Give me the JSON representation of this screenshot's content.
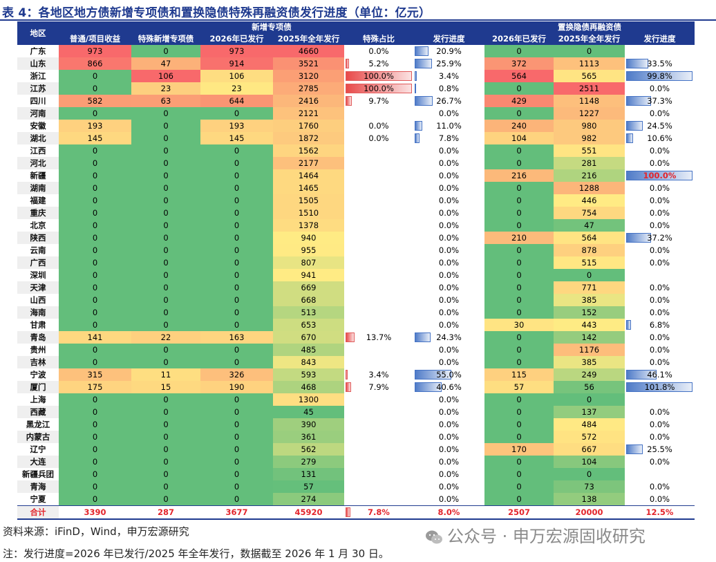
{
  "title": "表 4：各地区地方债新增专项债和置换隐债特殊再融资债发行进度（单位：亿元）",
  "header": {
    "region": "地区",
    "group_new": "新增专项债",
    "group_refi": "置换隐债再融资债",
    "cols": [
      "普通/项目收益",
      "特殊新增专项债",
      "2026年已发行",
      "2025年全年发行",
      "特殊占比",
      "发行进度",
      "2026年已发行",
      "2025年全年发行",
      "发行进度"
    ]
  },
  "rows": [
    {
      "region": "广东",
      "c1": "973",
      "c2": "0",
      "c3": "973",
      "c4": "4660",
      "share": "0.0%",
      "share_v": 0,
      "prog": "20.9%",
      "prog_v": 20.9,
      "r1": "0",
      "r2": "0",
      "rprog": "",
      "rprog_v": null
    },
    {
      "region": "山东",
      "c1": "866",
      "c2": "47",
      "c3": "914",
      "c4": "3521",
      "share": "5.2%",
      "share_v": 5.2,
      "prog": "25.9%",
      "prog_v": 25.9,
      "r1": "372",
      "r2": "1113",
      "rprog": "33.5%",
      "rprog_v": 33.5
    },
    {
      "region": "浙江",
      "c1": "0",
      "c2": "106",
      "c3": "106",
      "c4": "3120",
      "share": "100.0%",
      "share_v": 100,
      "prog": "3.4%",
      "prog_v": 3.4,
      "r1": "564",
      "r2": "565",
      "rprog": "99.8%",
      "rprog_v": 99.8
    },
    {
      "region": "江苏",
      "c1": "0",
      "c2": "23",
      "c3": "23",
      "c4": "2785",
      "share": "100.0%",
      "share_v": 100,
      "prog": "0.8%",
      "prog_v": 0.8,
      "r1": "0",
      "r2": "2511",
      "rprog": "0.0%",
      "rprog_v": 0
    },
    {
      "region": "四川",
      "c1": "582",
      "c2": "63",
      "c3": "644",
      "c4": "2416",
      "share": "9.7%",
      "share_v": 9.7,
      "prog": "26.7%",
      "prog_v": 26.7,
      "r1": "429",
      "r2": "1148",
      "rprog": "37.3%",
      "rprog_v": 37.3
    },
    {
      "region": "河南",
      "c1": "0",
      "c2": "0",
      "c3": "0",
      "c4": "2121",
      "share": "",
      "share_v": null,
      "prog": "0.0%",
      "prog_v": 0,
      "r1": "0",
      "r2": "1227",
      "rprog": "0.0%",
      "rprog_v": 0
    },
    {
      "region": "安徽",
      "c1": "193",
      "c2": "0",
      "c3": "193",
      "c4": "1760",
      "share": "0.0%",
      "share_v": 0,
      "prog": "11.0%",
      "prog_v": 11.0,
      "r1": "240",
      "r2": "980",
      "rprog": "24.5%",
      "rprog_v": 24.5
    },
    {
      "region": "湖北",
      "c1": "145",
      "c2": "0",
      "c3": "145",
      "c4": "1872",
      "share": "0.0%",
      "share_v": 0,
      "prog": "7.8%",
      "prog_v": 7.8,
      "r1": "104",
      "r2": "982",
      "rprog": "10.6%",
      "rprog_v": 10.6
    },
    {
      "region": "江西",
      "c1": "0",
      "c2": "0",
      "c3": "0",
      "c4": "1562",
      "share": "",
      "share_v": null,
      "prog": "0.0%",
      "prog_v": 0,
      "r1": "0",
      "r2": "551",
      "rprog": "0.0%",
      "rprog_v": 0
    },
    {
      "region": "河北",
      "c1": "0",
      "c2": "0",
      "c3": "0",
      "c4": "2177",
      "share": "",
      "share_v": null,
      "prog": "0.0%",
      "prog_v": 0,
      "r1": "0",
      "r2": "281",
      "rprog": "0.0%",
      "rprog_v": 0
    },
    {
      "region": "新疆",
      "c1": "0",
      "c2": "0",
      "c3": "0",
      "c4": "1464",
      "share": "",
      "share_v": null,
      "prog": "0.0%",
      "prog_v": 0,
      "r1": "216",
      "r2": "216",
      "rprog": "100.0%",
      "rprog_v": 100,
      "rprog_hl": true
    },
    {
      "region": "湖南",
      "c1": "0",
      "c2": "0",
      "c3": "0",
      "c4": "1465",
      "share": "",
      "share_v": null,
      "prog": "0.0%",
      "prog_v": 0,
      "r1": "0",
      "r2": "1288",
      "rprog": "0.0%",
      "rprog_v": 0
    },
    {
      "region": "福建",
      "c1": "0",
      "c2": "0",
      "c3": "0",
      "c4": "1505",
      "share": "",
      "share_v": null,
      "prog": "0.0%",
      "prog_v": 0,
      "r1": "0",
      "r2": "446",
      "rprog": "0.0%",
      "rprog_v": 0
    },
    {
      "region": "重庆",
      "c1": "0",
      "c2": "0",
      "c3": "0",
      "c4": "1510",
      "share": "",
      "share_v": null,
      "prog": "0.0%",
      "prog_v": 0,
      "r1": "0",
      "r2": "754",
      "rprog": "0.0%",
      "rprog_v": 0
    },
    {
      "region": "北京",
      "c1": "0",
      "c2": "0",
      "c3": "0",
      "c4": "1378",
      "share": "",
      "share_v": null,
      "prog": "0.0%",
      "prog_v": 0,
      "r1": "0",
      "r2": "47",
      "rprog": "0.0%",
      "rprog_v": 0
    },
    {
      "region": "陕西",
      "c1": "0",
      "c2": "0",
      "c3": "0",
      "c4": "940",
      "share": "",
      "share_v": null,
      "prog": "0.0%",
      "prog_v": 0,
      "r1": "210",
      "r2": "564",
      "rprog": "37.2%",
      "rprog_v": 37.2
    },
    {
      "region": "云南",
      "c1": "0",
      "c2": "0",
      "c3": "0",
      "c4": "955",
      "share": "",
      "share_v": null,
      "prog": "0.0%",
      "prog_v": 0,
      "r1": "0",
      "r2": "878",
      "rprog": "0.0%",
      "rprog_v": 0
    },
    {
      "region": "广西",
      "c1": "0",
      "c2": "0",
      "c3": "0",
      "c4": "807",
      "share": "",
      "share_v": null,
      "prog": "0.0%",
      "prog_v": 0,
      "r1": "0",
      "r2": "515",
      "rprog": "0.0%",
      "rprog_v": 0
    },
    {
      "region": "深圳",
      "c1": "0",
      "c2": "0",
      "c3": "0",
      "c4": "941",
      "share": "",
      "share_v": null,
      "prog": "0.0%",
      "prog_v": 0,
      "r1": "0",
      "r2": "0",
      "rprog": "",
      "rprog_v": null
    },
    {
      "region": "天津",
      "c1": "0",
      "c2": "0",
      "c3": "0",
      "c4": "669",
      "share": "",
      "share_v": null,
      "prog": "0.0%",
      "prog_v": 0,
      "r1": "0",
      "r2": "771",
      "rprog": "0.0%",
      "rprog_v": 0
    },
    {
      "region": "山西",
      "c1": "0",
      "c2": "0",
      "c3": "0",
      "c4": "668",
      "share": "",
      "share_v": null,
      "prog": "0.0%",
      "prog_v": 0,
      "r1": "0",
      "r2": "385",
      "rprog": "0.0%",
      "rprog_v": 0
    },
    {
      "region": "海南",
      "c1": "0",
      "c2": "0",
      "c3": "0",
      "c4": "513",
      "share": "",
      "share_v": null,
      "prog": "0.0%",
      "prog_v": 0,
      "r1": "0",
      "r2": "152",
      "rprog": "0.0%",
      "rprog_v": 0
    },
    {
      "region": "甘肃",
      "c1": "0",
      "c2": "0",
      "c3": "0",
      "c4": "653",
      "share": "",
      "share_v": null,
      "prog": "0.0%",
      "prog_v": 0,
      "r1": "30",
      "r2": "443",
      "rprog": "6.8%",
      "rprog_v": 6.8
    },
    {
      "region": "青岛",
      "c1": "141",
      "c2": "22",
      "c3": "163",
      "c4": "670",
      "share": "13.7%",
      "share_v": 13.7,
      "prog": "24.3%",
      "prog_v": 24.3,
      "r1": "0",
      "r2": "142",
      "rprog": "0.0%",
      "rprog_v": 0
    },
    {
      "region": "贵州",
      "c1": "0",
      "c2": "0",
      "c3": "0",
      "c4": "485",
      "share": "",
      "share_v": null,
      "prog": "0.0%",
      "prog_v": 0,
      "r1": "0",
      "r2": "1176",
      "rprog": "0.0%",
      "rprog_v": 0
    },
    {
      "region": "吉林",
      "c1": "0",
      "c2": "0",
      "c3": "0",
      "c4": "843",
      "share": "",
      "share_v": null,
      "prog": "0.0%",
      "prog_v": 0,
      "r1": "0",
      "r2": "385",
      "rprog": "0.0%",
      "rprog_v": 0
    },
    {
      "region": "宁波",
      "c1": "315",
      "c2": "11",
      "c3": "326",
      "c4": "593",
      "share": "3.4%",
      "share_v": 3.4,
      "prog": "55.0%",
      "prog_v": 55.0,
      "r1": "115",
      "r2": "249",
      "rprog": "46.1%",
      "rprog_v": 46.1
    },
    {
      "region": "厦门",
      "c1": "175",
      "c2": "15",
      "c3": "190",
      "c4": "468",
      "share": "7.9%",
      "share_v": 7.9,
      "prog": "40.6%",
      "prog_v": 40.6,
      "r1": "57",
      "r2": "56",
      "rprog": "101.8%",
      "rprog_v": 101.8
    },
    {
      "region": "上海",
      "c1": "0",
      "c2": "0",
      "c3": "0",
      "c4": "1300",
      "share": "",
      "share_v": null,
      "prog": "0.0%",
      "prog_v": 0,
      "r1": "0",
      "r2": "0",
      "rprog": "",
      "rprog_v": null
    },
    {
      "region": "西藏",
      "c1": "0",
      "c2": "0",
      "c3": "0",
      "c4": "45",
      "share": "",
      "share_v": null,
      "prog": "0.0%",
      "prog_v": 0,
      "r1": "0",
      "r2": "137",
      "rprog": "0.0%",
      "rprog_v": 0
    },
    {
      "region": "黑龙江",
      "c1": "0",
      "c2": "0",
      "c3": "0",
      "c4": "390",
      "share": "",
      "share_v": null,
      "prog": "0.0%",
      "prog_v": 0,
      "r1": "0",
      "r2": "484",
      "rprog": "0.0%",
      "rprog_v": 0
    },
    {
      "region": "内蒙古",
      "c1": "0",
      "c2": "0",
      "c3": "0",
      "c4": "361",
      "share": "",
      "share_v": null,
      "prog": "0.0%",
      "prog_v": 0,
      "r1": "0",
      "r2": "572",
      "rprog": "0.0%",
      "rprog_v": 0
    },
    {
      "region": "辽宁",
      "c1": "0",
      "c2": "0",
      "c3": "0",
      "c4": "562",
      "share": "",
      "share_v": null,
      "prog": "0.0%",
      "prog_v": 0,
      "r1": "170",
      "r2": "667",
      "rprog": "25.5%",
      "rprog_v": 25.5
    },
    {
      "region": "大连",
      "c1": "0",
      "c2": "0",
      "c3": "0",
      "c4": "279",
      "share": "",
      "share_v": null,
      "prog": "0.0%",
      "prog_v": 0,
      "r1": "0",
      "r2": "104",
      "rprog": "0.0%",
      "rprog_v": 0
    },
    {
      "region": "新疆兵团",
      "c1": "0",
      "c2": "0",
      "c3": "0",
      "c4": "131",
      "share": "",
      "share_v": null,
      "prog": "0.0%",
      "prog_v": 0,
      "r1": "0",
      "r2": "0",
      "rprog": "",
      "rprog_v": null
    },
    {
      "region": "青海",
      "c1": "0",
      "c2": "0",
      "c3": "0",
      "c4": "57",
      "share": "",
      "share_v": null,
      "prog": "0.0%",
      "prog_v": 0,
      "r1": "0",
      "r2": "73",
      "rprog": "0.0%",
      "rprog_v": 0
    },
    {
      "region": "宁夏",
      "c1": "0",
      "c2": "0",
      "c3": "0",
      "c4": "274",
      "share": "",
      "share_v": null,
      "prog": "0.0%",
      "prog_v": 0,
      "r1": "0",
      "r2": "138",
      "rprog": "0.0%",
      "rprog_v": 0
    }
  ],
  "total": {
    "region": "合计",
    "c1": "3390",
    "c2": "287",
    "c3": "3677",
    "c4": "45920",
    "share": "7.8%",
    "share_v": 7.8,
    "prog": "8.0%",
    "r1": "2507",
    "r2": "20000",
    "rprog": "12.5%"
  },
  "footer": {
    "source": "资料来源：iFinD，Wind，申万宏源研究",
    "note": "注：发行进度=2026 年已发行/2025 年全年发行，数据截至 2026 年 1 月 30 日。",
    "watermark": "公众号 · 申万宏源固收研究"
  },
  "colors": {
    "header": "#1F3A8F",
    "green": "#63BE7B",
    "yellow": "#FFEB84",
    "red": "#F8696B",
    "total": "#E3242B"
  }
}
